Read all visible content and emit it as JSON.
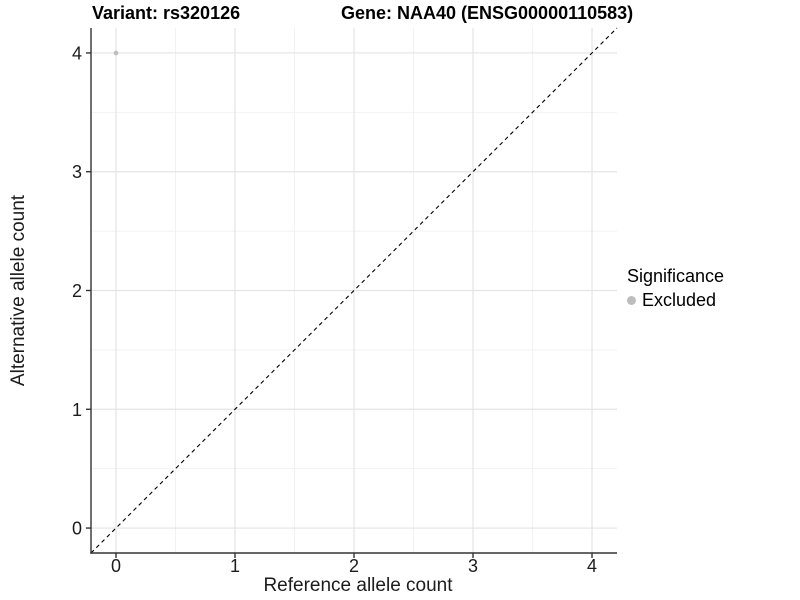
{
  "chart_data": {
    "type": "scatter",
    "titles": {
      "variant": "Variant: rs320126",
      "gene": "Gene: NAA40 (ENSG00000110583)"
    },
    "xlabel": "Reference allele count",
    "ylabel": "Alternative allele count",
    "xlim": [
      -0.21,
      4.21
    ],
    "ylim": [
      -0.21,
      4.21
    ],
    "xticks": [
      0,
      1,
      2,
      3,
      4
    ],
    "yticks": [
      0,
      1,
      2,
      3,
      4
    ],
    "xminor": [
      0.5,
      1.5,
      2.5,
      3.5
    ],
    "yminor": [
      0.5,
      1.5,
      2.5,
      3.5
    ],
    "grid": true,
    "identity_line": {
      "style": "dashed",
      "x1": -0.21,
      "y1": -0.21,
      "x2": 4.21,
      "y2": 4.21,
      "color": "#000000"
    },
    "series": [
      {
        "name": "Excluded",
        "color": "#bdbdbd",
        "point_radius": 2.3,
        "points": [
          {
            "x": 0,
            "y": 4
          }
        ]
      }
    ],
    "legend": {
      "title": "Significance",
      "position": "right",
      "items": [
        {
          "label": "Excluded",
          "color": "#bdbdbd",
          "swatch": "dot-icon"
        }
      ]
    },
    "colors": {
      "background": "#ffffff",
      "grid_major": "#e4e4e4",
      "grid_minor": "#f2f2f2",
      "axis_line": "#333333",
      "text": "#1c1c1c",
      "title_text": "#000000"
    }
  }
}
